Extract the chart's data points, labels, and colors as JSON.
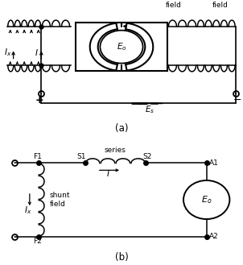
{
  "bg_color": "#ffffff",
  "line_color": "#000000",
  "fig_width": 3.02,
  "fig_height": 3.29,
  "dpi": 100,
  "label_a": "(a)",
  "label_b": "(b)",
  "series_field_label": "series\nfield",
  "shunt_field_label": "shunt\nfield",
  "shunt_field_label_b": "shunt\nfield",
  "series_label_b": "series",
  "Eo_label": "$E_o$",
  "Es_label": "$E_s$",
  "I_label": "$I$",
  "Ix_label": "$I_x$",
  "plus_label": "+",
  "minus_label": "−"
}
